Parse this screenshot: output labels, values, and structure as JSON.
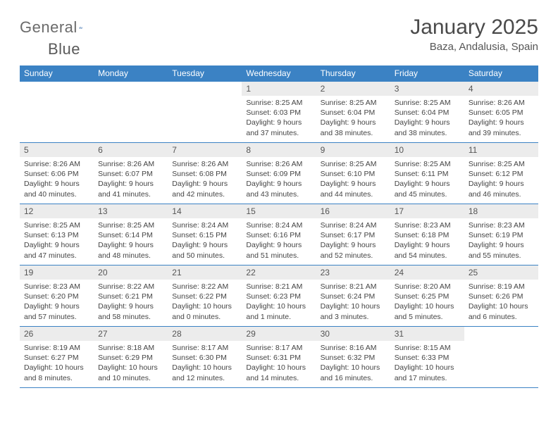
{
  "logo": {
    "text_part1": "General",
    "text_part2": "Blue"
  },
  "title": "January 2025",
  "location": "Baza, Andalusia, Spain",
  "colors": {
    "header_bg": "#3b82c4",
    "header_text": "#ffffff",
    "daynum_bg": "#ececec",
    "text": "#444444",
    "rule": "#3b82c4"
  },
  "fonts": {
    "title_size": 30,
    "location_size": 15,
    "dow_size": 12,
    "body_size": 10.5
  },
  "days_of_week": [
    "Sunday",
    "Monday",
    "Tuesday",
    "Wednesday",
    "Thursday",
    "Friday",
    "Saturday"
  ],
  "weeks": [
    [
      {
        "n": "",
        "sunrise": "",
        "sunset": "",
        "daylight": ""
      },
      {
        "n": "",
        "sunrise": "",
        "sunset": "",
        "daylight": ""
      },
      {
        "n": "",
        "sunrise": "",
        "sunset": "",
        "daylight": ""
      },
      {
        "n": "1",
        "sunrise": "Sunrise: 8:25 AM",
        "sunset": "Sunset: 6:03 PM",
        "daylight": "Daylight: 9 hours and 37 minutes."
      },
      {
        "n": "2",
        "sunrise": "Sunrise: 8:25 AM",
        "sunset": "Sunset: 6:04 PM",
        "daylight": "Daylight: 9 hours and 38 minutes."
      },
      {
        "n": "3",
        "sunrise": "Sunrise: 8:25 AM",
        "sunset": "Sunset: 6:04 PM",
        "daylight": "Daylight: 9 hours and 38 minutes."
      },
      {
        "n": "4",
        "sunrise": "Sunrise: 8:26 AM",
        "sunset": "Sunset: 6:05 PM",
        "daylight": "Daylight: 9 hours and 39 minutes."
      }
    ],
    [
      {
        "n": "5",
        "sunrise": "Sunrise: 8:26 AM",
        "sunset": "Sunset: 6:06 PM",
        "daylight": "Daylight: 9 hours and 40 minutes."
      },
      {
        "n": "6",
        "sunrise": "Sunrise: 8:26 AM",
        "sunset": "Sunset: 6:07 PM",
        "daylight": "Daylight: 9 hours and 41 minutes."
      },
      {
        "n": "7",
        "sunrise": "Sunrise: 8:26 AM",
        "sunset": "Sunset: 6:08 PM",
        "daylight": "Daylight: 9 hours and 42 minutes."
      },
      {
        "n": "8",
        "sunrise": "Sunrise: 8:26 AM",
        "sunset": "Sunset: 6:09 PM",
        "daylight": "Daylight: 9 hours and 43 minutes."
      },
      {
        "n": "9",
        "sunrise": "Sunrise: 8:25 AM",
        "sunset": "Sunset: 6:10 PM",
        "daylight": "Daylight: 9 hours and 44 minutes."
      },
      {
        "n": "10",
        "sunrise": "Sunrise: 8:25 AM",
        "sunset": "Sunset: 6:11 PM",
        "daylight": "Daylight: 9 hours and 45 minutes."
      },
      {
        "n": "11",
        "sunrise": "Sunrise: 8:25 AM",
        "sunset": "Sunset: 6:12 PM",
        "daylight": "Daylight: 9 hours and 46 minutes."
      }
    ],
    [
      {
        "n": "12",
        "sunrise": "Sunrise: 8:25 AM",
        "sunset": "Sunset: 6:13 PM",
        "daylight": "Daylight: 9 hours and 47 minutes."
      },
      {
        "n": "13",
        "sunrise": "Sunrise: 8:25 AM",
        "sunset": "Sunset: 6:14 PM",
        "daylight": "Daylight: 9 hours and 48 minutes."
      },
      {
        "n": "14",
        "sunrise": "Sunrise: 8:24 AM",
        "sunset": "Sunset: 6:15 PM",
        "daylight": "Daylight: 9 hours and 50 minutes."
      },
      {
        "n": "15",
        "sunrise": "Sunrise: 8:24 AM",
        "sunset": "Sunset: 6:16 PM",
        "daylight": "Daylight: 9 hours and 51 minutes."
      },
      {
        "n": "16",
        "sunrise": "Sunrise: 8:24 AM",
        "sunset": "Sunset: 6:17 PM",
        "daylight": "Daylight: 9 hours and 52 minutes."
      },
      {
        "n": "17",
        "sunrise": "Sunrise: 8:23 AM",
        "sunset": "Sunset: 6:18 PM",
        "daylight": "Daylight: 9 hours and 54 minutes."
      },
      {
        "n": "18",
        "sunrise": "Sunrise: 8:23 AM",
        "sunset": "Sunset: 6:19 PM",
        "daylight": "Daylight: 9 hours and 55 minutes."
      }
    ],
    [
      {
        "n": "19",
        "sunrise": "Sunrise: 8:23 AM",
        "sunset": "Sunset: 6:20 PM",
        "daylight": "Daylight: 9 hours and 57 minutes."
      },
      {
        "n": "20",
        "sunrise": "Sunrise: 8:22 AM",
        "sunset": "Sunset: 6:21 PM",
        "daylight": "Daylight: 9 hours and 58 minutes."
      },
      {
        "n": "21",
        "sunrise": "Sunrise: 8:22 AM",
        "sunset": "Sunset: 6:22 PM",
        "daylight": "Daylight: 10 hours and 0 minutes."
      },
      {
        "n": "22",
        "sunrise": "Sunrise: 8:21 AM",
        "sunset": "Sunset: 6:23 PM",
        "daylight": "Daylight: 10 hours and 1 minute."
      },
      {
        "n": "23",
        "sunrise": "Sunrise: 8:21 AM",
        "sunset": "Sunset: 6:24 PM",
        "daylight": "Daylight: 10 hours and 3 minutes."
      },
      {
        "n": "24",
        "sunrise": "Sunrise: 8:20 AM",
        "sunset": "Sunset: 6:25 PM",
        "daylight": "Daylight: 10 hours and 5 minutes."
      },
      {
        "n": "25",
        "sunrise": "Sunrise: 8:19 AM",
        "sunset": "Sunset: 6:26 PM",
        "daylight": "Daylight: 10 hours and 6 minutes."
      }
    ],
    [
      {
        "n": "26",
        "sunrise": "Sunrise: 8:19 AM",
        "sunset": "Sunset: 6:27 PM",
        "daylight": "Daylight: 10 hours and 8 minutes."
      },
      {
        "n": "27",
        "sunrise": "Sunrise: 8:18 AM",
        "sunset": "Sunset: 6:29 PM",
        "daylight": "Daylight: 10 hours and 10 minutes."
      },
      {
        "n": "28",
        "sunrise": "Sunrise: 8:17 AM",
        "sunset": "Sunset: 6:30 PM",
        "daylight": "Daylight: 10 hours and 12 minutes."
      },
      {
        "n": "29",
        "sunrise": "Sunrise: 8:17 AM",
        "sunset": "Sunset: 6:31 PM",
        "daylight": "Daylight: 10 hours and 14 minutes."
      },
      {
        "n": "30",
        "sunrise": "Sunrise: 8:16 AM",
        "sunset": "Sunset: 6:32 PM",
        "daylight": "Daylight: 10 hours and 16 minutes."
      },
      {
        "n": "31",
        "sunrise": "Sunrise: 8:15 AM",
        "sunset": "Sunset: 6:33 PM",
        "daylight": "Daylight: 10 hours and 17 minutes."
      },
      {
        "n": "",
        "sunrise": "",
        "sunset": "",
        "daylight": ""
      }
    ]
  ]
}
